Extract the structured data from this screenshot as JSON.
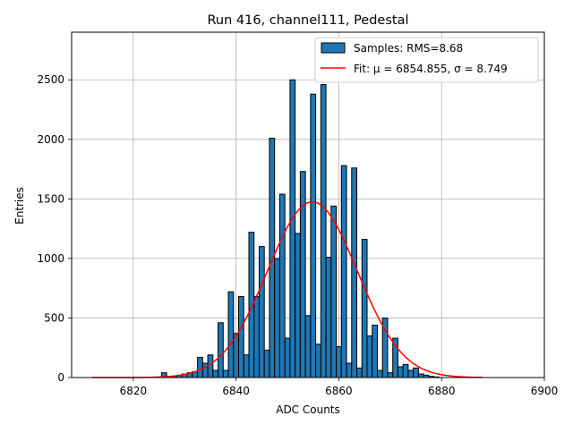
{
  "chart_data": {
    "type": "bar",
    "title": "Run 416, channel111, Pedestal",
    "xlabel": "ADC Counts",
    "ylabel": "Entries",
    "xlim": [
      6808,
      6900
    ],
    "ylim": [
      0,
      2900
    ],
    "xticks": [
      6820,
      6840,
      6860,
      6880,
      6900
    ],
    "yticks": [
      0,
      500,
      1000,
      1500,
      2000,
      2500
    ],
    "grid": true,
    "legend_position": "top-right",
    "bar_color": "#1f77b4",
    "fit_color": "#ff0000",
    "histogram": {
      "name": "Samples: RMS=8.68",
      "bin_width": 1,
      "x": [
        6826,
        6827,
        6828,
        6829,
        6830,
        6831,
        6832,
        6833,
        6834,
        6835,
        6836,
        6837,
        6838,
        6839,
        6840,
        6841,
        6842,
        6843,
        6844,
        6845,
        6846,
        6847,
        6848,
        6849,
        6850,
        6851,
        6852,
        6853,
        6854,
        6855,
        6856,
        6857,
        6858,
        6859,
        6860,
        6861,
        6862,
        6863,
        6864,
        6865,
        6866,
        6867,
        6868,
        6869,
        6870,
        6871,
        6872,
        6873,
        6874,
        6875,
        6876,
        6877,
        6878,
        6879
      ],
      "counts": [
        40,
        10,
        10,
        20,
        30,
        40,
        50,
        170,
        120,
        190,
        60,
        460,
        60,
        720,
        370,
        680,
        190,
        1220,
        680,
        1100,
        230,
        2010,
        1000,
        1540,
        330,
        2500,
        1210,
        1730,
        520,
        2380,
        280,
        2460,
        1010,
        1440,
        260,
        1780,
        120,
        1760,
        80,
        1160,
        350,
        440,
        60,
        500,
        40,
        330,
        90,
        110,
        60,
        80,
        30,
        20,
        10,
        5
      ]
    },
    "fit": {
      "name": "Fit: μ = 6854.855, σ = 8.749",
      "mu": 6854.855,
      "sigma": 8.749,
      "amplitude": 1475,
      "x_range": [
        6812,
        6888
      ]
    }
  }
}
